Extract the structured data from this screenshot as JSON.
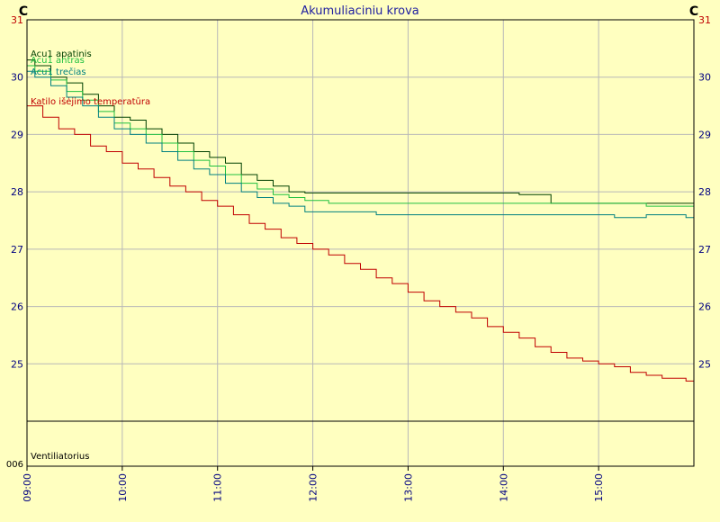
{
  "chart_data": {
    "type": "line",
    "title": "Akumuliaciniu krova",
    "y_unit_left": "C",
    "y_unit_right": "C",
    "ylim": [
      24.0,
      31.0
    ],
    "yticks": [
      25,
      26,
      27,
      28,
      29,
      30,
      31
    ],
    "x_range_minutes": [
      540,
      960
    ],
    "xticks": [
      {
        "label": "09:00",
        "minutes": 540
      },
      {
        "label": "10:00",
        "minutes": 600
      },
      {
        "label": "11:00",
        "minutes": 660
      },
      {
        "label": "12:00",
        "minutes": 720
      },
      {
        "label": "13:00",
        "minutes": 780
      },
      {
        "label": "14:00",
        "minutes": 840
      },
      {
        "label": "15:00",
        "minutes": 900
      }
    ],
    "grid": true,
    "series": [
      {
        "name": "Acu1 apatinis",
        "color": "#004000",
        "points": [
          [
            540,
            30.3
          ],
          [
            545,
            30.2
          ],
          [
            555,
            30.0
          ],
          [
            565,
            29.9
          ],
          [
            575,
            29.7
          ],
          [
            585,
            29.5
          ],
          [
            595,
            29.3
          ],
          [
            605,
            29.25
          ],
          [
            615,
            29.1
          ],
          [
            625,
            29.0
          ],
          [
            635,
            28.85
          ],
          [
            645,
            28.7
          ],
          [
            655,
            28.6
          ],
          [
            665,
            28.5
          ],
          [
            675,
            28.3
          ],
          [
            685,
            28.2
          ],
          [
            695,
            28.1
          ],
          [
            705,
            28.0
          ],
          [
            715,
            27.98
          ],
          [
            730,
            27.98
          ],
          [
            760,
            27.98
          ],
          [
            790,
            27.98
          ],
          [
            820,
            27.98
          ],
          [
            850,
            27.95
          ],
          [
            870,
            27.8
          ],
          [
            890,
            27.8
          ],
          [
            910,
            27.8
          ],
          [
            930,
            27.8
          ],
          [
            955,
            27.8
          ]
        ]
      },
      {
        "name": "Acu1 antras",
        "color": "#20c040",
        "points": [
          [
            540,
            30.2
          ],
          [
            545,
            30.1
          ],
          [
            555,
            29.95
          ],
          [
            565,
            29.75
          ],
          [
            575,
            29.6
          ],
          [
            585,
            29.4
          ],
          [
            595,
            29.2
          ],
          [
            605,
            29.1
          ],
          [
            615,
            29.0
          ],
          [
            625,
            28.85
          ],
          [
            635,
            28.7
          ],
          [
            645,
            28.55
          ],
          [
            655,
            28.45
          ],
          [
            665,
            28.3
          ],
          [
            675,
            28.15
          ],
          [
            685,
            28.05
          ],
          [
            695,
            27.95
          ],
          [
            705,
            27.9
          ],
          [
            715,
            27.85
          ],
          [
            730,
            27.8
          ],
          [
            760,
            27.8
          ],
          [
            790,
            27.8
          ],
          [
            820,
            27.8
          ],
          [
            850,
            27.8
          ],
          [
            870,
            27.8
          ],
          [
            890,
            27.8
          ],
          [
            910,
            27.8
          ],
          [
            930,
            27.75
          ],
          [
            955,
            27.75
          ]
        ]
      },
      {
        "name": "Acu1 trečias",
        "color": "#008080",
        "points": [
          [
            540,
            30.1
          ],
          [
            545,
            30.0
          ],
          [
            555,
            29.85
          ],
          [
            565,
            29.65
          ],
          [
            575,
            29.5
          ],
          [
            585,
            29.3
          ],
          [
            595,
            29.1
          ],
          [
            605,
            29.0
          ],
          [
            615,
            28.85
          ],
          [
            625,
            28.7
          ],
          [
            635,
            28.55
          ],
          [
            645,
            28.4
          ],
          [
            655,
            28.3
          ],
          [
            665,
            28.15
          ],
          [
            675,
            28.0
          ],
          [
            685,
            27.9
          ],
          [
            695,
            27.8
          ],
          [
            705,
            27.75
          ],
          [
            715,
            27.65
          ],
          [
            730,
            27.65
          ],
          [
            760,
            27.6
          ],
          [
            790,
            27.6
          ],
          [
            820,
            27.6
          ],
          [
            850,
            27.6
          ],
          [
            870,
            27.6
          ],
          [
            890,
            27.6
          ],
          [
            910,
            27.55
          ],
          [
            930,
            27.6
          ],
          [
            955,
            27.55
          ]
        ]
      },
      {
        "name": "Katilo išėjimo temperatūra",
        "color": "#c00000",
        "points": [
          [
            540,
            29.5
          ],
          [
            550,
            29.3
          ],
          [
            560,
            29.1
          ],
          [
            570,
            29.0
          ],
          [
            580,
            28.8
          ],
          [
            590,
            28.7
          ],
          [
            600,
            28.5
          ],
          [
            610,
            28.4
          ],
          [
            620,
            28.25
          ],
          [
            630,
            28.1
          ],
          [
            640,
            28.0
          ],
          [
            650,
            27.85
          ],
          [
            660,
            27.75
          ],
          [
            670,
            27.6
          ],
          [
            680,
            27.45
          ],
          [
            690,
            27.35
          ],
          [
            700,
            27.2
          ],
          [
            710,
            27.1
          ],
          [
            720,
            27.0
          ],
          [
            730,
            26.9
          ],
          [
            740,
            26.75
          ],
          [
            750,
            26.65
          ],
          [
            760,
            26.5
          ],
          [
            770,
            26.4
          ],
          [
            780,
            26.25
          ],
          [
            790,
            26.1
          ],
          [
            800,
            26.0
          ],
          [
            810,
            25.9
          ],
          [
            820,
            25.8
          ],
          [
            830,
            25.65
          ],
          [
            840,
            25.55
          ],
          [
            850,
            25.45
          ],
          [
            860,
            25.3
          ],
          [
            870,
            25.2
          ],
          [
            880,
            25.1
          ],
          [
            890,
            25.05
          ],
          [
            900,
            25.0
          ],
          [
            910,
            24.95
          ],
          [
            920,
            24.85
          ],
          [
            930,
            24.8
          ],
          [
            940,
            24.75
          ],
          [
            955,
            24.7
          ]
        ]
      }
    ],
    "sub_panel": {
      "label": "Ventiliatorius",
      "axis_value": "006"
    }
  }
}
